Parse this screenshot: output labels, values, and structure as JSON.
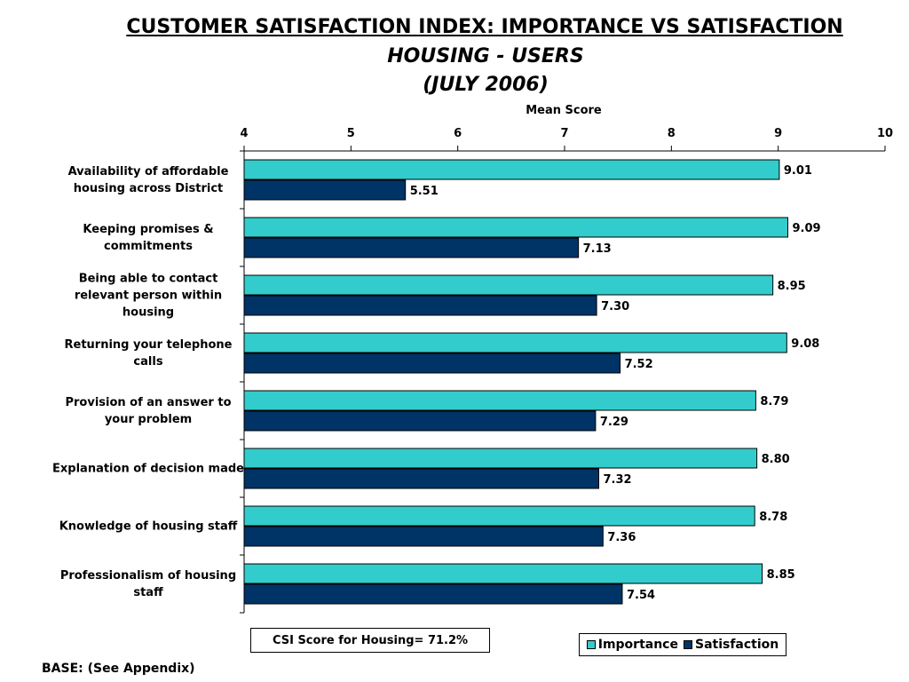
{
  "title": "CUSTOMER SATISFACTION INDEX: IMPORTANCE VS SATISFACTION",
  "subtitle_1": "HOUSING - USERS",
  "subtitle_2": "(JULY 2006)",
  "csi_text": "CSI Score for Housing= 71.2%",
  "base_text": "BASE: (See Appendix)",
  "colors": {
    "importance": "#33CCCC",
    "satisfaction": "#003366"
  },
  "chart_data": {
    "type": "bar",
    "orientation": "horizontal",
    "xlabel": "Mean Score",
    "xlim": [
      4,
      10
    ],
    "xticks": [
      "4",
      "5",
      "6",
      "7",
      "8",
      "9",
      "10"
    ],
    "categories": [
      [
        "Availability of affordable",
        "housing across District"
      ],
      [
        "Keeping promises &",
        "commitments"
      ],
      [
        "Being able to contact",
        "relevant person within",
        "housing"
      ],
      [
        "Returning your telephone",
        "calls"
      ],
      [
        "Provision of an answer to",
        "your problem"
      ],
      [
        "Explanation of decision made"
      ],
      [
        "Knowledge of housing staff"
      ],
      [
        "Professionalism of housing",
        "staff"
      ]
    ],
    "series": [
      {
        "name": "Importance",
        "values": [
          9.01,
          9.09,
          8.95,
          9.08,
          8.79,
          8.8,
          8.78,
          8.85
        ],
        "labels": [
          "9.01",
          "9.09",
          "8.95",
          "9.08",
          "8.79",
          "8.80",
          "8.78",
          "8.85"
        ]
      },
      {
        "name": "Satisfaction",
        "values": [
          5.51,
          7.13,
          7.3,
          7.52,
          7.29,
          7.32,
          7.36,
          7.54
        ],
        "labels": [
          "5.51",
          "7.13",
          "7.30",
          "7.52",
          "7.29",
          "7.32",
          "7.36",
          "7.54"
        ]
      }
    ],
    "legend_position": "bottom-right"
  }
}
